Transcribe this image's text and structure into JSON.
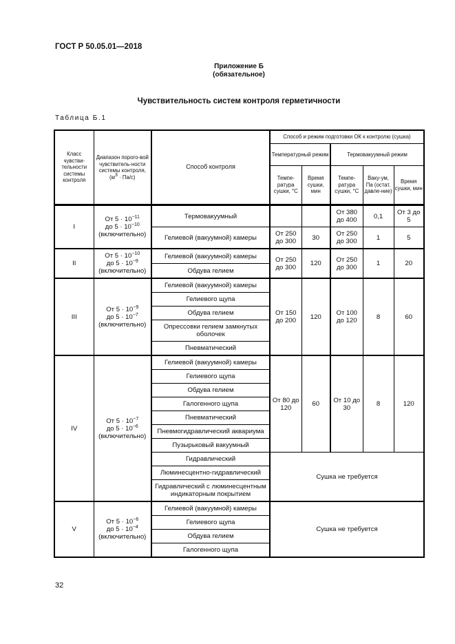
{
  "doc_code": "ГОСТ Р 50.05.01—2018",
  "appendix": {
    "title": "Приложение Б",
    "status": "(обязательное)"
  },
  "heading": "Чувствительность систем контроля герметичности",
  "table_caption": "Таблица Б.1",
  "page_number": "32",
  "table": {
    "headers": {
      "class": "Класс чувстви-тельности системы контроля",
      "range": "Диапазон порого-вой чувствитель-ности системы контроля,",
      "range_unit_base": "(м",
      "range_unit_exp": "3",
      "range_unit_rest": " · Па/с)",
      "method": "Способ контроля",
      "drying": "Способ и режим подготовки ОК к контролю (сушка)",
      "temp_mode": "Температурный режим",
      "thermovac_mode": "Термовакуумный режим",
      "sub": [
        "Темпе-ратура сушки, °С",
        "Время сушки, мин",
        "Темпе-ратура сушки, °С",
        "Ваку-ум, Па (остат. давле-ние)",
        "Время сушки, мин"
      ]
    },
    "groups": [
      {
        "class": "I",
        "from_base": "От 5 · 10",
        "from_exp": "−11",
        "to_base": "до 5 · 10",
        "to_exp": "−10",
        "note": "(включительно)",
        "blocks": [
          {
            "methods": [
              "Термовакуумный"
            ],
            "drying": [
              "",
              "",
              "От 380 до 400",
              "0,1",
              "От 3 до 5"
            ]
          },
          {
            "methods": [
              "Гелиевой (вакуумной) камеры"
            ],
            "drying": [
              "От 250 до 300",
              "30",
              "От 250 до 300",
              "1",
              "5"
            ]
          }
        ]
      },
      {
        "class": "II",
        "from_base": "От 5 · 10",
        "from_exp": "−10",
        "to_base": "до 5 · 10",
        "to_exp": "−9",
        "note": "(включительно)",
        "blocks": [
          {
            "methods": [
              "Гелиевой (вакуумной) камеры",
              "Обдува гелием"
            ],
            "drying": [
              "От 250 до 300",
              "120",
              "От 250 до 300",
              "1",
              "20"
            ]
          }
        ]
      },
      {
        "class": "III",
        "from_base": "От 5 · 10",
        "from_exp": "−9",
        "to_base": "до 5 · 10",
        "to_exp": "−7",
        "note": "(включительно)",
        "blocks": [
          {
            "methods": [
              "Гелиевой (вакуумной) камеры",
              "Гелиевого щупа",
              "Обдува гелием",
              "Опрессовки гелием замкнутых оболочек",
              "Пневматический"
            ],
            "drying": [
              "От 150 до 200",
              "120",
              "От 100 до 120",
              "8",
              "60"
            ]
          }
        ]
      },
      {
        "class": "IV",
        "from_base": "От 5 · 10",
        "from_exp": "−7",
        "to_base": "до 5 · 10",
        "to_exp": "−6",
        "note": "(включительно)",
        "blocks": [
          {
            "methods": [
              "Гелиевой (вакуумной) камеры",
              "Гелиевого щупа",
              "Обдува гелием",
              "Галогенного щупа",
              "Пневматический",
              "Пневмогидравлический аквариума",
              "Пузырьковый вакуумный"
            ],
            "drying": [
              "От 80 до 120",
              "60",
              "От 10 до 30",
              "8",
              "120"
            ]
          },
          {
            "methods": [
              "Гидравлический",
              "Люминесцентно-гидравлический",
              "Гидравлический с люминесцентным индикаторным покрытием"
            ],
            "no_drying": "Сушка не требуется"
          }
        ]
      },
      {
        "class": "V",
        "from_base": "От 5 · 10",
        "from_exp": "−6",
        "to_base": "до 5 · 10",
        "to_exp": "−4",
        "note": "(включительно)",
        "blocks": [
          {
            "methods": [
              "Гелиевой (вакуумной) камеры",
              "Гелиевого щупа",
              "Обдува гелием",
              "Галогенного щупа"
            ],
            "no_drying": "Сушка не требуется"
          }
        ]
      }
    ]
  }
}
